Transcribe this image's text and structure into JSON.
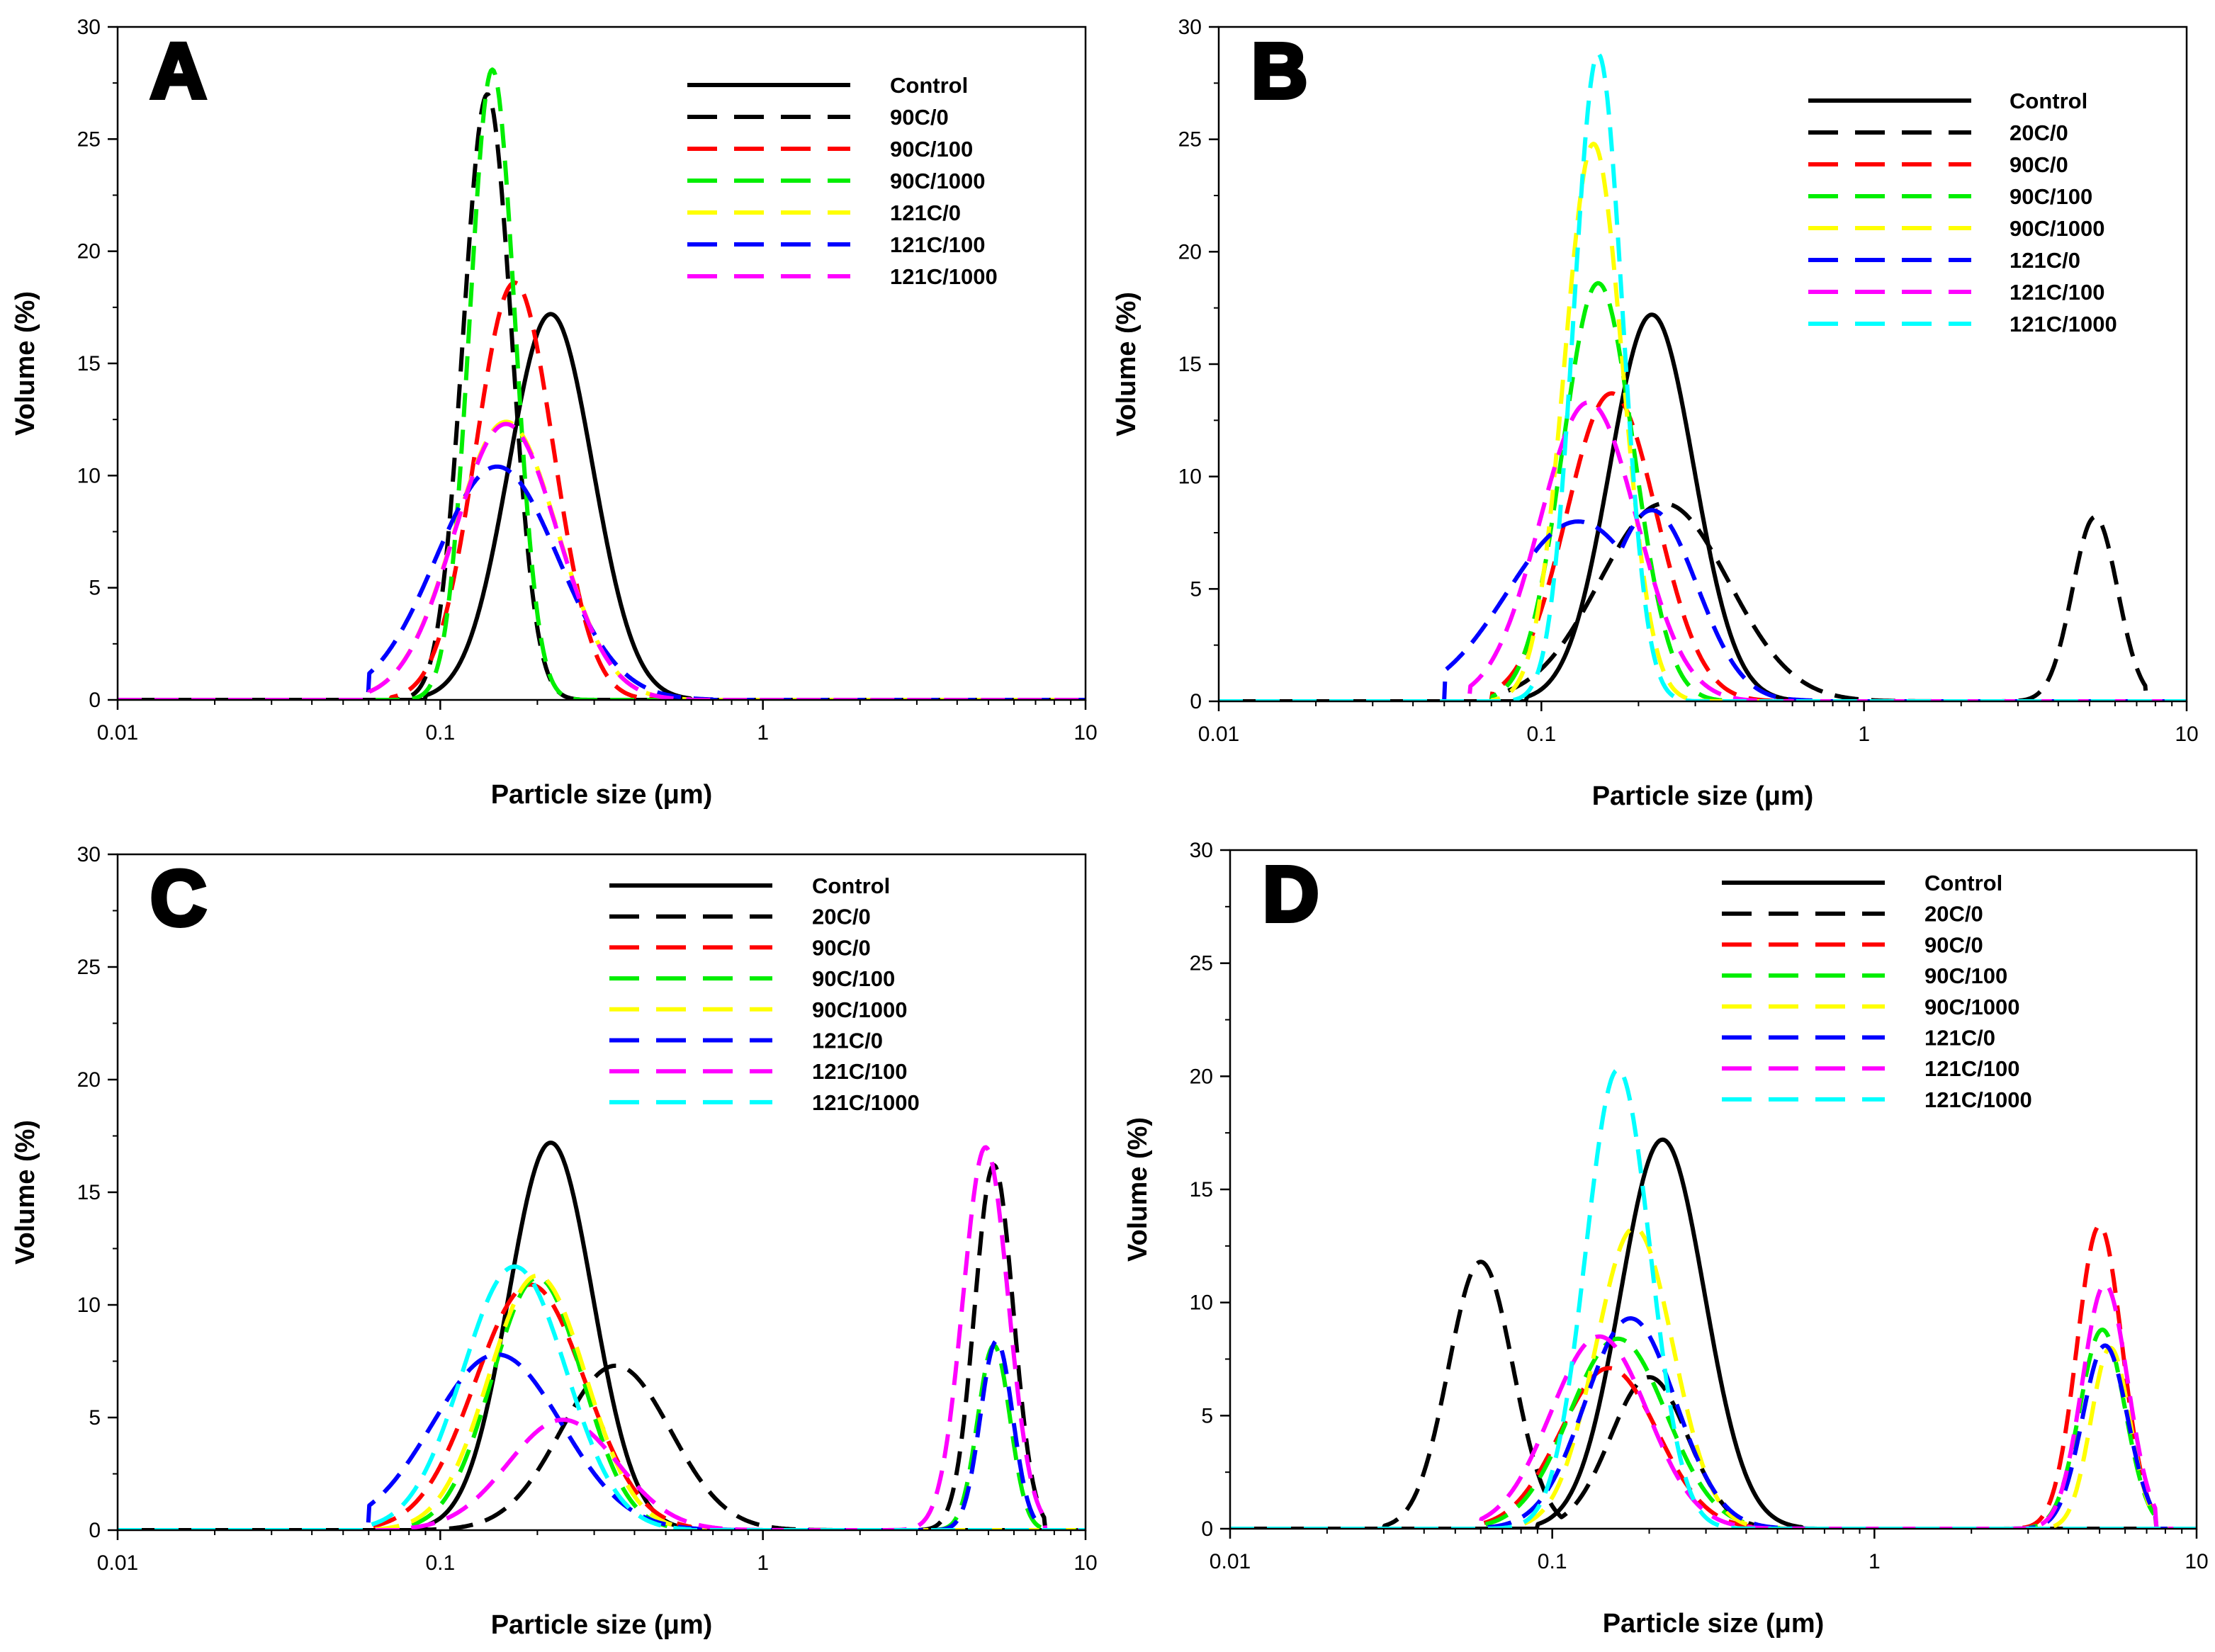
{
  "figure": {
    "colors": {
      "Control": "#000000",
      "20C/0": "#000000",
      "90C/0": "#ff0000",
      "90C/100": "#00ee00",
      "90C/1000": "#ffff00",
      "121C/0": "#0000ff",
      "121C/100": "#ff00ff",
      "121C/1000": "#00ffff",
      "A:90C/0": "#000000"
    }
  },
  "chart_data": [
    {
      "panel": "A",
      "type": "line",
      "title": "A",
      "xlabel": "Particle size (μm)",
      "ylabel": "Volume (%)",
      "xscale": "log",
      "xlim": [
        0.01,
        10
      ],
      "ylim": [
        0,
        30
      ],
      "xticks": [
        "0.01",
        "0.1",
        "1",
        "10"
      ],
      "yticks": [
        "0",
        "5",
        "10",
        "15",
        "20",
        "25",
        "30"
      ],
      "legend_position": "top-right",
      "series": [
        {
          "name": "Control",
          "style": "solid",
          "color_key": "Control",
          "peaks": [
            {
              "x": 0.22,
              "y": 17.2,
              "sigma": 0.13
            }
          ],
          "range": [
            0.09,
            0.6
          ]
        },
        {
          "name": "90C/0",
          "style": "dashed",
          "color_key": "A:90C/0",
          "peaks": [
            {
              "x": 0.14,
              "y": 27.0,
              "sigma": 0.075
            }
          ],
          "range": [
            0.07,
            0.35
          ]
        },
        {
          "name": "90C/100",
          "style": "dashed",
          "color_key": "90C/0",
          "peaks": [
            {
              "x": 0.17,
              "y": 18.6,
              "sigma": 0.12
            }
          ],
          "range": [
            0.07,
            0.5
          ]
        },
        {
          "name": "90C/1000",
          "style": "dashed",
          "color_key": "90C/100",
          "peaks": [
            {
              "x": 0.145,
              "y": 28.1,
              "sigma": 0.07
            }
          ],
          "range": [
            0.07,
            0.35
          ]
        },
        {
          "name": "121C/0",
          "style": "dashed",
          "color_key": "90C/1000",
          "peaks": [
            {
              "x": 0.16,
              "y": 12.4,
              "sigma": 0.16
            }
          ],
          "range": [
            0.06,
            0.6
          ]
        },
        {
          "name": "121C/100",
          "style": "dashed",
          "color_key": "121C/0",
          "peaks": [
            {
              "x": 0.15,
              "y": 10.4,
              "sigma": 0.19
            }
          ],
          "range": [
            0.06,
            0.7
          ]
        },
        {
          "name": "121C/1000",
          "style": "dashed",
          "color_key": "121C/100",
          "peaks": [
            {
              "x": 0.16,
              "y": 12.3,
              "sigma": 0.16
            }
          ],
          "range": [
            0.06,
            0.6
          ]
        }
      ]
    },
    {
      "panel": "B",
      "type": "line",
      "title": "B",
      "xlabel": "Particle size (μm)",
      "ylabel": "Volume (%)",
      "xscale": "log",
      "xlim": [
        0.01,
        10
      ],
      "ylim": [
        0,
        30
      ],
      "xticks": [
        "0.01",
        "0.1",
        "1",
        "10"
      ],
      "yticks": [
        "0",
        "5",
        "10",
        "15",
        "20",
        "25",
        "30"
      ],
      "legend_position": "top-right",
      "series": [
        {
          "name": "Control",
          "style": "solid",
          "color_key": "Control",
          "peaks": [
            {
              "x": 0.22,
              "y": 17.2,
              "sigma": 0.13
            }
          ],
          "range": [
            0.09,
            0.6
          ]
        },
        {
          "name": "20C/0",
          "style": "dashed",
          "color_key": "20C/0",
          "peaks": [
            {
              "x": 0.24,
              "y": 8.8,
              "sigma": 0.2
            },
            {
              "x": 5.2,
              "y": 8.2,
              "sigma": 0.07
            }
          ],
          "range": [
            0.07,
            7.5
          ]
        },
        {
          "name": "90C/0",
          "style": "dashed",
          "color_key": "90C/0",
          "peaks": [
            {
              "x": 0.165,
              "y": 13.7,
              "sigma": 0.14
            }
          ],
          "range": [
            0.07,
            0.6
          ]
        },
        {
          "name": "90C/100",
          "style": "dashed",
          "color_key": "90C/100",
          "peaks": [
            {
              "x": 0.15,
              "y": 18.6,
              "sigma": 0.11
            }
          ],
          "range": [
            0.07,
            0.5
          ]
        },
        {
          "name": "90C/1000",
          "style": "dashed",
          "color_key": "90C/1000",
          "peaks": [
            {
              "x": 0.145,
              "y": 24.8,
              "sigma": 0.09
            }
          ],
          "range": [
            0.07,
            0.4
          ]
        },
        {
          "name": "121C/0",
          "style": "dashed",
          "color_key": "121C/0",
          "peaks": [
            {
              "x": 0.13,
              "y": 8.0,
              "sigma": 0.22
            },
            {
              "x": 0.22,
              "y": 8.5,
              "sigma": 0.14
            }
          ],
          "range": [
            0.05,
            0.7
          ]
        },
        {
          "name": "121C/100",
          "style": "dashed",
          "color_key": "121C/100",
          "peaks": [
            {
              "x": 0.14,
              "y": 13.3,
              "sigma": 0.15
            }
          ],
          "range": [
            0.06,
            0.6
          ]
        },
        {
          "name": "121C/1000",
          "style": "dashed",
          "color_key": "121C/1000",
          "peaks": [
            {
              "x": 0.15,
              "y": 28.8,
              "sigma": 0.075
            }
          ],
          "range": [
            0.07,
            0.35
          ]
        }
      ]
    },
    {
      "panel": "C",
      "type": "line",
      "title": "C",
      "xlabel": "Particle size (μm)",
      "ylabel": "Volume (%)",
      "xscale": "log",
      "xlim": [
        0.01,
        10
      ],
      "ylim": [
        0,
        30
      ],
      "xticks": [
        "0.01",
        "0.1",
        "1",
        "10"
      ],
      "yticks": [
        "0",
        "5",
        "10",
        "15",
        "20",
        "25",
        "30"
      ],
      "legend_position": "top-right",
      "series": [
        {
          "name": "Control",
          "style": "solid",
          "color_key": "Control",
          "peaks": [
            {
              "x": 0.22,
              "y": 17.2,
              "sigma": 0.13
            }
          ],
          "range": [
            0.09,
            0.6
          ]
        },
        {
          "name": "20C/0",
          "style": "dashed",
          "color_key": "20C/0",
          "peaks": [
            {
              "x": 0.35,
              "y": 7.3,
              "sigma": 0.17
            },
            {
              "x": 5.2,
              "y": 16.2,
              "sigma": 0.06
            }
          ],
          "range": [
            0.09,
            7.5
          ]
        },
        {
          "name": "90C/0",
          "style": "dashed",
          "color_key": "90C/0",
          "peaks": [
            {
              "x": 0.19,
              "y": 10.9,
              "sigma": 0.17
            }
          ],
          "range": [
            0.06,
            0.6
          ]
        },
        {
          "name": "90C/100",
          "style": "dashed",
          "color_key": "90C/100",
          "peaks": [
            {
              "x": 0.2,
              "y": 11.2,
              "sigma": 0.14
            },
            {
              "x": 5.2,
              "y": 8.2,
              "sigma": 0.05
            }
          ],
          "range": [
            0.06,
            7.5
          ]
        },
        {
          "name": "90C/1000",
          "style": "dashed",
          "color_key": "90C/1000",
          "peaks": [
            {
              "x": 0.2,
              "y": 11.3,
              "sigma": 0.15
            }
          ],
          "range": [
            0.06,
            0.6
          ]
        },
        {
          "name": "121C/0",
          "style": "dashed",
          "color_key": "121C/0",
          "peaks": [
            {
              "x": 0.15,
              "y": 7.8,
              "sigma": 0.2
            },
            {
              "x": 5.3,
              "y": 8.4,
              "sigma": 0.05
            }
          ],
          "range": [
            0.06,
            7.5
          ]
        },
        {
          "name": "121C/100",
          "style": "dashed",
          "color_key": "121C/100",
          "peaks": [
            {
              "x": 0.24,
              "y": 4.9,
              "sigma": 0.17
            },
            {
              "x": 4.9,
              "y": 17.0,
              "sigma": 0.07
            }
          ],
          "range": [
            0.08,
            7.5
          ]
        },
        {
          "name": "121C/1000",
          "style": "dashed",
          "color_key": "121C/1000",
          "peaks": [
            {
              "x": 0.17,
              "y": 11.7,
              "sigma": 0.16
            }
          ],
          "range": [
            0.06,
            0.6
          ]
        }
      ]
    },
    {
      "panel": "D",
      "type": "line",
      "title": "D",
      "xlabel": "Particle size (μm)",
      "ylabel": "Volume (%)",
      "xscale": "log",
      "xlim": [
        0.01,
        10
      ],
      "ylim": [
        0,
        30
      ],
      "xticks": [
        "0.01",
        "0.1",
        "1",
        "10"
      ],
      "yticks": [
        "0",
        "5",
        "10",
        "15",
        "20",
        "25",
        "30"
      ],
      "legend_position": "top-right",
      "series": [
        {
          "name": "Control",
          "style": "solid",
          "color_key": "Control",
          "peaks": [
            {
              "x": 0.22,
              "y": 17.2,
              "sigma": 0.13
            }
          ],
          "range": [
            0.09,
            0.6
          ]
        },
        {
          "name": "20C/0",
          "style": "dashed",
          "color_key": "20C/0",
          "peaks": [
            {
              "x": 0.06,
              "y": 11.8,
              "sigma": 0.1
            },
            {
              "x": 0.2,
              "y": 6.7,
              "sigma": 0.12
            }
          ],
          "range": [
            0.03,
            0.5
          ]
        },
        {
          "name": "90C/0",
          "style": "dashed",
          "color_key": "90C/0",
          "peaks": [
            {
              "x": 0.15,
              "y": 7.1,
              "sigma": 0.15
            },
            {
              "x": 5.0,
              "y": 13.4,
              "sigma": 0.07
            }
          ],
          "range": [
            0.06,
            7.5
          ]
        },
        {
          "name": "90C/100",
          "style": "dashed",
          "color_key": "90C/100",
          "peaks": [
            {
              "x": 0.16,
              "y": 8.4,
              "sigma": 0.15
            },
            {
              "x": 5.1,
              "y": 8.8,
              "sigma": 0.07
            }
          ],
          "range": [
            0.06,
            7.5
          ]
        },
        {
          "name": "90C/1000",
          "style": "dashed",
          "color_key": "90C/1000",
          "peaks": [
            {
              "x": 0.18,
              "y": 13.3,
              "sigma": 0.12
            },
            {
              "x": 5.4,
              "y": 8.0,
              "sigma": 0.06
            }
          ],
          "range": [
            0.06,
            7.5
          ]
        },
        {
          "name": "121C/0",
          "style": "dashed",
          "color_key": "121C/0",
          "peaks": [
            {
              "x": 0.175,
              "y": 9.3,
              "sigma": 0.14
            },
            {
              "x": 5.2,
              "y": 8.1,
              "sigma": 0.07
            }
          ],
          "range": [
            0.06,
            7.5
          ]
        },
        {
          "name": "121C/100",
          "style": "dashed",
          "color_key": "121C/100",
          "peaks": [
            {
              "x": 0.14,
              "y": 8.5,
              "sigma": 0.15
            },
            {
              "x": 5.2,
              "y": 10.8,
              "sigma": 0.07
            }
          ],
          "range": [
            0.06,
            7.5
          ]
        },
        {
          "name": "121C/1000",
          "style": "dashed",
          "color_key": "121C/1000",
          "peaks": [
            {
              "x": 0.16,
              "y": 20.3,
              "sigma": 0.1
            }
          ],
          "range": [
            0.06,
            0.45
          ]
        }
      ]
    }
  ]
}
